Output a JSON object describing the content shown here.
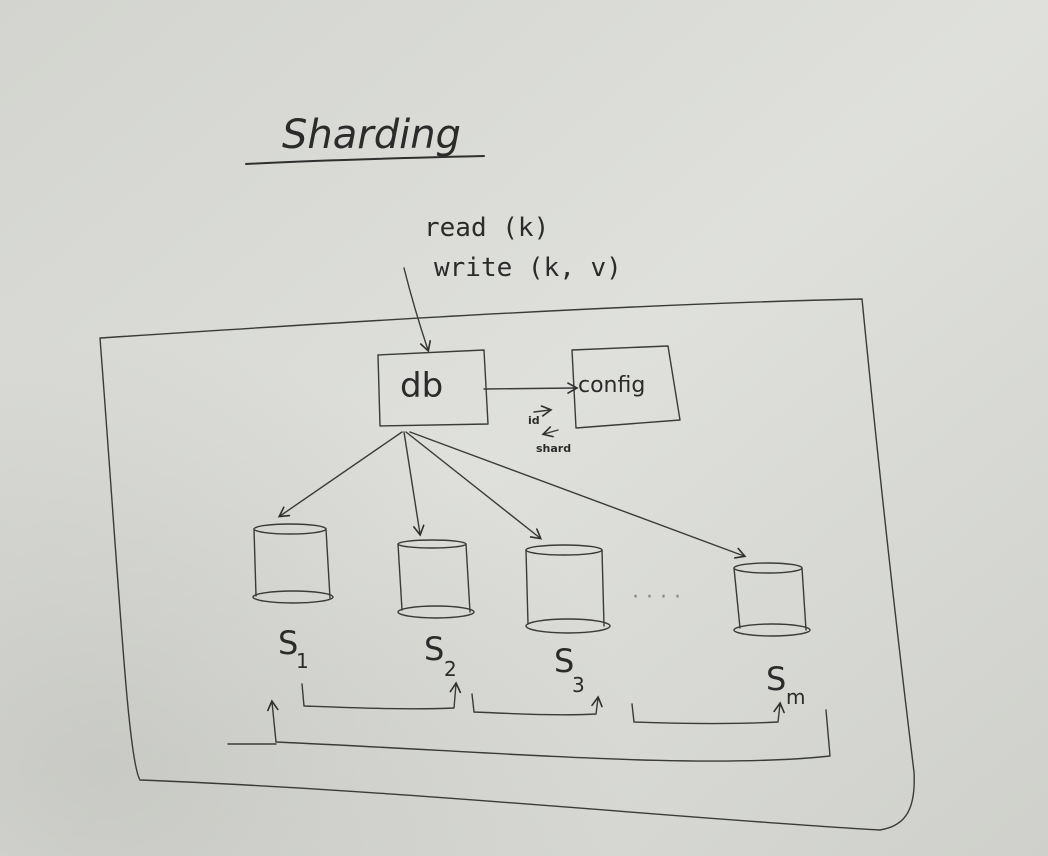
{
  "title": "Sharding",
  "operations": [
    "read (k)",
    "write (k, v)"
  ],
  "nodes": {
    "db": "db",
    "config": "config"
  },
  "config_note": {
    "top": "id",
    "bottom": "shard"
  },
  "shards": [
    {
      "letter": "S",
      "sub": "1"
    },
    {
      "letter": "S",
      "sub": "2"
    },
    {
      "letter": "S",
      "sub": "3"
    },
    {
      "letter": "S",
      "sub": "m"
    }
  ],
  "ellipsis": "· · · ·"
}
